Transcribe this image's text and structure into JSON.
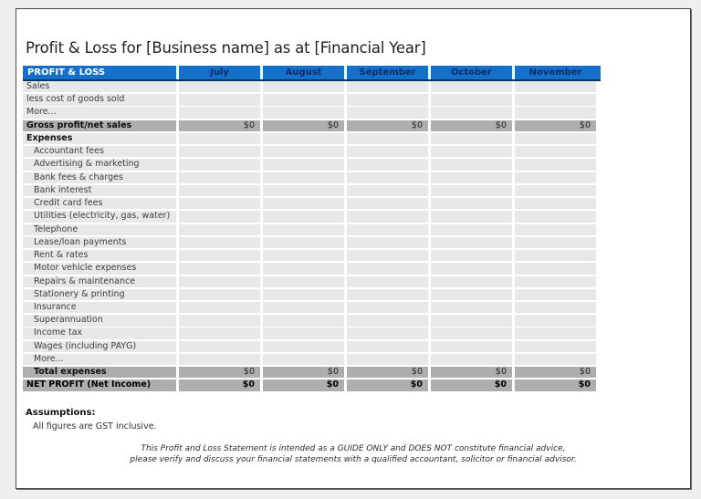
{
  "title": "Profit & Loss for [Business name] as at [Financial Year]",
  "colors": {
    "accent_blue": "#1470C8",
    "header_underline": "#0a3464",
    "month_text": "#0c2d69",
    "row_gray": "#e8e8e8",
    "band_gray": "#aeaeae"
  },
  "table": {
    "header_label": "PROFIT & LOSS",
    "months": [
      "July",
      "August",
      "September",
      "October",
      "November"
    ],
    "rows": [
      {
        "label": "Sales",
        "type": "row",
        "indent": 0,
        "values": [
          "",
          "",
          "",
          "",
          ""
        ]
      },
      {
        "label": "less cost of goods sold",
        "type": "row",
        "indent": 0,
        "values": [
          "",
          "",
          "",
          "",
          ""
        ]
      },
      {
        "label": "More...",
        "type": "row",
        "indent": 0,
        "values": [
          "",
          "",
          "",
          "",
          ""
        ]
      },
      {
        "label": "Gross profit/net sales",
        "type": "subtotal",
        "indent": 0,
        "values": [
          "$0",
          "$0",
          "$0",
          "$0",
          "$0"
        ]
      },
      {
        "label": "Expenses",
        "type": "section",
        "indent": 0,
        "values": [
          "",
          "",
          "",
          "",
          ""
        ]
      },
      {
        "label": "Accountant fees",
        "type": "row",
        "indent": 1,
        "values": [
          "",
          "",
          "",
          "",
          ""
        ]
      },
      {
        "label": "Advertising & marketing",
        "type": "row",
        "indent": 1,
        "values": [
          "",
          "",
          "",
          "",
          ""
        ]
      },
      {
        "label": "Bank fees & charges",
        "type": "row",
        "indent": 1,
        "values": [
          "",
          "",
          "",
          "",
          ""
        ]
      },
      {
        "label": "Bank interest",
        "type": "row",
        "indent": 1,
        "values": [
          "",
          "",
          "",
          "",
          ""
        ]
      },
      {
        "label": "Credit card fees",
        "type": "row",
        "indent": 1,
        "values": [
          "",
          "",
          "",
          "",
          ""
        ]
      },
      {
        "label": "Utilities (electricity, gas, water)",
        "type": "row",
        "indent": 1,
        "values": [
          "",
          "",
          "",
          "",
          ""
        ]
      },
      {
        "label": "Telephone",
        "type": "row",
        "indent": 1,
        "values": [
          "",
          "",
          "",
          "",
          ""
        ]
      },
      {
        "label": "Lease/loan payments",
        "type": "row",
        "indent": 1,
        "values": [
          "",
          "",
          "",
          "",
          ""
        ]
      },
      {
        "label": "Rent & rates",
        "type": "row",
        "indent": 1,
        "values": [
          "",
          "",
          "",
          "",
          ""
        ]
      },
      {
        "label": "Motor vehicle expenses",
        "type": "row",
        "indent": 1,
        "values": [
          "",
          "",
          "",
          "",
          ""
        ]
      },
      {
        "label": "Repairs & maintenance",
        "type": "row",
        "indent": 1,
        "values": [
          "",
          "",
          "",
          "",
          ""
        ]
      },
      {
        "label": "Stationery & printing",
        "type": "row",
        "indent": 1,
        "values": [
          "",
          "",
          "",
          "",
          ""
        ]
      },
      {
        "label": "Insurance",
        "type": "row",
        "indent": 1,
        "values": [
          "",
          "",
          "",
          "",
          ""
        ]
      },
      {
        "label": "Superannuation",
        "type": "row",
        "indent": 1,
        "values": [
          "",
          "",
          "",
          "",
          ""
        ]
      },
      {
        "label": "Income tax",
        "type": "row",
        "indent": 1,
        "values": [
          "",
          "",
          "",
          "",
          ""
        ]
      },
      {
        "label": "Wages (including PAYG)",
        "type": "row",
        "indent": 1,
        "values": [
          "",
          "",
          "",
          "",
          ""
        ]
      },
      {
        "label": "More...",
        "type": "row",
        "indent": 1,
        "values": [
          "",
          "",
          "",
          "",
          ""
        ]
      },
      {
        "label": "Total expenses",
        "type": "subtotal",
        "indent": 1,
        "values": [
          "$0",
          "$0",
          "$0",
          "$0",
          "$0"
        ]
      },
      {
        "label": "NET PROFIT (Net Income)",
        "type": "net",
        "indent": 0,
        "values": [
          "$0",
          "$0",
          "$0",
          "$0",
          "$0"
        ]
      }
    ]
  },
  "assumptions": {
    "heading": "Assumptions:",
    "text": "All figures are GST inclusive."
  },
  "footer": {
    "line1": "This Profit and Loss Statement is intended as a GUIDE ONLY and DOES NOT constitute financial advice,",
    "line2": "please verify and discuss your financial statements with a qualified accountant, solicitor or financial advisor."
  }
}
